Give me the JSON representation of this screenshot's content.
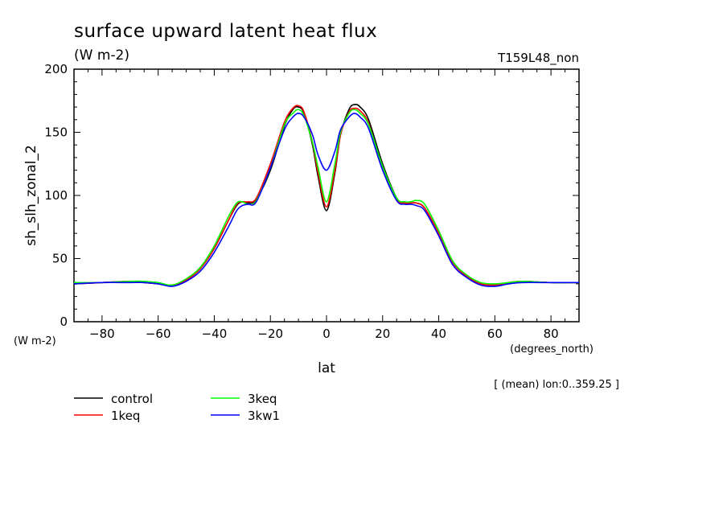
{
  "header": {
    "title": "surface upward latent heat flux",
    "units": "(W m-2)",
    "run_name": "T159L48_non"
  },
  "footer": {
    "y_units_note": "(W m-2)",
    "x_units_note": "(degrees_north)",
    "mean_note": "[ (mean) lon:0..359.25 ]"
  },
  "colors": {
    "control": "#000000",
    "1keq": "#ff0000",
    "3keq": "#00ff00",
    "3kw1": "#0000ff"
  },
  "chart_data": {
    "type": "line",
    "title": "surface upward latent heat flux",
    "subtitle": "(W m-2)",
    "xlabel": "lat",
    "ylabel": "sh_slh_zonal_2",
    "xlim": [
      -90,
      90
    ],
    "ylim": [
      0,
      200
    ],
    "xticks": [
      -80,
      -60,
      -40,
      -20,
      0,
      20,
      40,
      60,
      80
    ],
    "yticks": [
      0,
      50,
      100,
      150,
      200
    ],
    "grid": false,
    "legend_position": "bottom-left",
    "x": [
      -90,
      -80,
      -70,
      -65,
      -60,
      -55,
      -50,
      -45,
      -40,
      -35,
      -32,
      -30,
      -28,
      -25,
      -20,
      -15,
      -12,
      -10,
      -8,
      -5,
      -3,
      0,
      3,
      5,
      8,
      10,
      12,
      15,
      20,
      25,
      28,
      30,
      32,
      35,
      40,
      45,
      50,
      55,
      60,
      65,
      70,
      80,
      90
    ],
    "series": [
      {
        "name": "control",
        "color": "#000000",
        "values": [
          30,
          31,
          32,
          31,
          30,
          29,
          33,
          42,
          58,
          80,
          92,
          95,
          94,
          97,
          120,
          155,
          168,
          170,
          165,
          140,
          115,
          88,
          118,
          148,
          168,
          172,
          170,
          160,
          125,
          98,
          94,
          94,
          94,
          90,
          70,
          47,
          36,
          30,
          29,
          31,
          32,
          31,
          31
        ]
      },
      {
        "name": "1keq",
        "color": "#ff0000",
        "values": [
          30,
          31,
          32,
          31,
          30,
          29,
          33,
          42,
          58,
          80,
          93,
          95,
          95,
          98,
          125,
          158,
          169,
          171,
          166,
          142,
          118,
          91,
          120,
          148,
          166,
          169,
          167,
          157,
          122,
          97,
          94,
          94,
          94,
          90,
          70,
          47,
          36,
          30,
          29,
          31,
          32,
          31,
          31
        ]
      },
      {
        "name": "3keq",
        "color": "#00ff00",
        "values": [
          31,
          31,
          32,
          32,
          31,
          29,
          34,
          43,
          60,
          83,
          94,
          95,
          93,
          96,
          122,
          156,
          165,
          168,
          163,
          142,
          122,
          95,
          125,
          150,
          165,
          168,
          165,
          156,
          123,
          98,
          95,
          95,
          96,
          93,
          72,
          48,
          37,
          31,
          30,
          31,
          32,
          31,
          31
        ]
      },
      {
        "name": "3kw1",
        "color": "#0000ff",
        "values": [
          30,
          31,
          31,
          31,
          30,
          28,
          32,
          40,
          55,
          75,
          88,
          92,
          93,
          95,
          122,
          152,
          162,
          165,
          162,
          148,
          132,
          120,
          135,
          152,
          162,
          165,
          162,
          153,
          120,
          96,
          93,
          93,
          92,
          88,
          68,
          45,
          35,
          29,
          28,
          30,
          31,
          31,
          31
        ]
      }
    ]
  }
}
